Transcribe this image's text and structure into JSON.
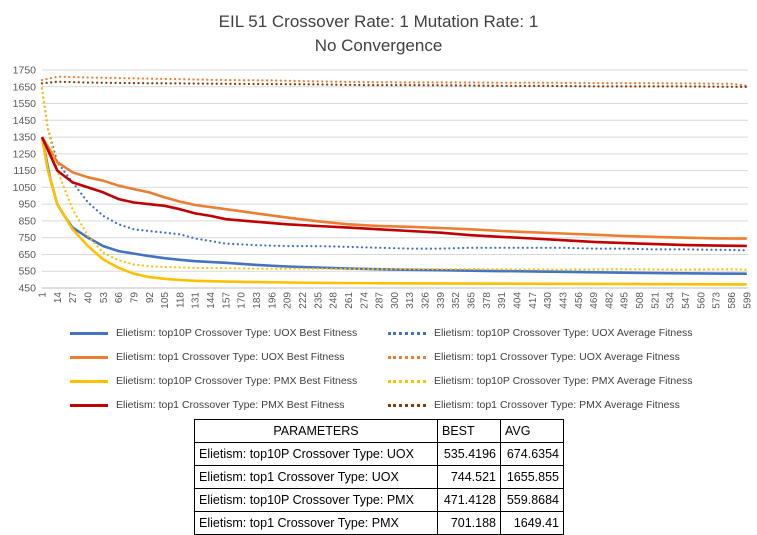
{
  "chart_data": {
    "type": "line",
    "title": "EIL 51 Crossover Rate: 1 Mutation Rate: 1",
    "subtitle": "No Convergence",
    "xlabel": "",
    "ylabel": "",
    "ylim": [
      450,
      1750
    ],
    "yticks": [
      450,
      550,
      650,
      750,
      850,
      950,
      1050,
      1150,
      1250,
      1350,
      1450,
      1550,
      1650,
      1750
    ],
    "xlim": [
      1,
      600
    ],
    "xticks": [
      1,
      14,
      27,
      40,
      53,
      66,
      79,
      92,
      105,
      118,
      131,
      144,
      157,
      170,
      183,
      196,
      209,
      222,
      235,
      248,
      261,
      274,
      287,
      300,
      313,
      326,
      339,
      352,
      365,
      378,
      391,
      404,
      417,
      430,
      443,
      456,
      469,
      482,
      495,
      508,
      521,
      534,
      547,
      560,
      573,
      586,
      599
    ],
    "grid": "horizontal",
    "legend_position": "bottom",
    "series": [
      {
        "name": "Elietism: top10P Crossover Type: UOX  Best Fitness",
        "color": "#4472C4",
        "style": "solid",
        "points": [
          [
            1,
            1350
          ],
          [
            8,
            1100
          ],
          [
            14,
            950
          ],
          [
            20,
            880
          ],
          [
            27,
            810
          ],
          [
            40,
            750
          ],
          [
            53,
            700
          ],
          [
            66,
            670
          ],
          [
            79,
            655
          ],
          [
            92,
            640
          ],
          [
            105,
            628
          ],
          [
            118,
            618
          ],
          [
            131,
            610
          ],
          [
            157,
            600
          ],
          [
            183,
            588
          ],
          [
            209,
            578
          ],
          [
            235,
            572
          ],
          [
            261,
            566
          ],
          [
            300,
            560
          ],
          [
            339,
            556
          ],
          [
            378,
            552
          ],
          [
            417,
            549
          ],
          [
            456,
            545
          ],
          [
            495,
            541
          ],
          [
            534,
            538
          ],
          [
            573,
            536
          ],
          [
            599,
            535.4
          ]
        ]
      },
      {
        "name": "Elietism: top10P Crossover Type: UOX  Average Fitness",
        "color": "#4472C4",
        "style": "dotted",
        "points": [
          [
            1,
            1640
          ],
          [
            6,
            1400
          ],
          [
            14,
            1200
          ],
          [
            27,
            1080
          ],
          [
            40,
            960
          ],
          [
            53,
            880
          ],
          [
            66,
            830
          ],
          [
            79,
            800
          ],
          [
            92,
            790
          ],
          [
            105,
            780
          ],
          [
            118,
            770
          ],
          [
            131,
            745
          ],
          [
            144,
            730
          ],
          [
            157,
            715
          ],
          [
            183,
            705
          ],
          [
            209,
            700
          ],
          [
            235,
            700
          ],
          [
            261,
            695
          ],
          [
            287,
            690
          ],
          [
            313,
            685
          ],
          [
            339,
            685
          ],
          [
            365,
            690
          ],
          [
            391,
            690
          ],
          [
            417,
            690
          ],
          [
            443,
            690
          ],
          [
            469,
            685
          ],
          [
            495,
            685
          ],
          [
            521,
            680
          ],
          [
            547,
            680
          ],
          [
            573,
            678
          ],
          [
            599,
            674.6
          ]
        ]
      },
      {
        "name": "Elietism: top1 Crossover Type: UOX  Best Fitness",
        "color": "#ED7D31",
        "style": "solid",
        "points": [
          [
            1,
            1350
          ],
          [
            14,
            1200
          ],
          [
            27,
            1140
          ],
          [
            40,
            1110
          ],
          [
            53,
            1090
          ],
          [
            66,
            1060
          ],
          [
            79,
            1040
          ],
          [
            92,
            1020
          ],
          [
            105,
            990
          ],
          [
            118,
            965
          ],
          [
            131,
            945
          ],
          [
            157,
            920
          ],
          [
            183,
            895
          ],
          [
            209,
            870
          ],
          [
            235,
            848
          ],
          [
            261,
            830
          ],
          [
            287,
            820
          ],
          [
            313,
            815
          ],
          [
            339,
            808
          ],
          [
            365,
            800
          ],
          [
            391,
            790
          ],
          [
            417,
            782
          ],
          [
            443,
            775
          ],
          [
            469,
            768
          ],
          [
            495,
            760
          ],
          [
            521,
            755
          ],
          [
            547,
            750
          ],
          [
            573,
            746
          ],
          [
            599,
            744.5
          ]
        ]
      },
      {
        "name": "Elietism: top1 Crossover Type: UOX  Average Fitness",
        "color": "#ED7D31",
        "style": "dotted",
        "points": [
          [
            1,
            1690
          ],
          [
            14,
            1710
          ],
          [
            40,
            1705
          ],
          [
            79,
            1700
          ],
          [
            118,
            1695
          ],
          [
            157,
            1690
          ],
          [
            196,
            1688
          ],
          [
            235,
            1682
          ],
          [
            274,
            1678
          ],
          [
            313,
            1676
          ],
          [
            352,
            1676
          ],
          [
            391,
            1674
          ],
          [
            430,
            1674
          ],
          [
            469,
            1672
          ],
          [
            508,
            1672
          ],
          [
            547,
            1670
          ],
          [
            586,
            1668
          ],
          [
            599,
            1655.9
          ]
        ]
      },
      {
        "name": "Elietism: top10P Crossover Type: PMX  Best Fitness",
        "color": "#FFC000",
        "style": "solid",
        "points": [
          [
            1,
            1350
          ],
          [
            6,
            1150
          ],
          [
            14,
            950
          ],
          [
            27,
            800
          ],
          [
            40,
            700
          ],
          [
            53,
            620
          ],
          [
            66,
            570
          ],
          [
            79,
            535
          ],
          [
            92,
            515
          ],
          [
            105,
            505
          ],
          [
            118,
            498
          ],
          [
            131,
            493
          ],
          [
            157,
            488
          ],
          [
            183,
            485
          ],
          [
            209,
            483
          ],
          [
            248,
            480
          ],
          [
            300,
            478
          ],
          [
            365,
            476
          ],
          [
            430,
            475
          ],
          [
            495,
            474
          ],
          [
            560,
            472
          ],
          [
            599,
            471.4
          ]
        ]
      },
      {
        "name": "Elietism: top10P Crossover Type: PMX  Average Fitness",
        "color": "#FFC000",
        "style": "dotted",
        "points": [
          [
            1,
            1640
          ],
          [
            6,
            1400
          ],
          [
            14,
            1150
          ],
          [
            27,
            920
          ],
          [
            40,
            760
          ],
          [
            53,
            660
          ],
          [
            66,
            615
          ],
          [
            79,
            590
          ],
          [
            92,
            580
          ],
          [
            105,
            575
          ],
          [
            131,
            570
          ],
          [
            157,
            568
          ],
          [
            183,
            565
          ],
          [
            235,
            565
          ],
          [
            287,
            562
          ],
          [
            339,
            563
          ],
          [
            391,
            562
          ],
          [
            443,
            560
          ],
          [
            495,
            562
          ],
          [
            547,
            560
          ],
          [
            586,
            562
          ],
          [
            599,
            559.9
          ]
        ]
      },
      {
        "name": "Elietism: top1 Crossover Type: PMX  Best Fitness",
        "color": "#C00000",
        "style": "solid",
        "points": [
          [
            1,
            1350
          ],
          [
            14,
            1150
          ],
          [
            27,
            1080
          ],
          [
            40,
            1050
          ],
          [
            53,
            1020
          ],
          [
            66,
            980
          ],
          [
            79,
            960
          ],
          [
            92,
            950
          ],
          [
            105,
            940
          ],
          [
            118,
            920
          ],
          [
            131,
            895
          ],
          [
            144,
            880
          ],
          [
            157,
            860
          ],
          [
            183,
            845
          ],
          [
            209,
            830
          ],
          [
            235,
            820
          ],
          [
            261,
            810
          ],
          [
            287,
            800
          ],
          [
            313,
            790
          ],
          [
            339,
            780
          ],
          [
            365,
            765
          ],
          [
            391,
            755
          ],
          [
            417,
            745
          ],
          [
            443,
            735
          ],
          [
            469,
            725
          ],
          [
            495,
            718
          ],
          [
            521,
            712
          ],
          [
            547,
            706
          ],
          [
            573,
            703
          ],
          [
            599,
            701.2
          ]
        ]
      },
      {
        "name": "Elietism: top1 Crossover Type: PMX  Average Fitness",
        "color": "#843C0C",
        "style": "dotted",
        "points": [
          [
            1,
            1670
          ],
          [
            14,
            1680
          ],
          [
            40,
            1675
          ],
          [
            79,
            1672
          ],
          [
            118,
            1670
          ],
          [
            157,
            1668
          ],
          [
            196,
            1666
          ],
          [
            235,
            1664
          ],
          [
            274,
            1660
          ],
          [
            313,
            1660
          ],
          [
            352,
            1658
          ],
          [
            391,
            1656
          ],
          [
            430,
            1655
          ],
          [
            469,
            1653
          ],
          [
            508,
            1652
          ],
          [
            547,
            1652
          ],
          [
            586,
            1650
          ],
          [
            599,
            1649.4
          ]
        ]
      }
    ]
  },
  "table": {
    "headers": [
      "PARAMETERS",
      "BEST",
      "AVG"
    ],
    "rows": [
      [
        "Elietism: top10P Crossover Type: UOX",
        "535.4196",
        "674.6354"
      ],
      [
        "Elietism: top1 Crossover Type: UOX",
        "744.521",
        "1655.855"
      ],
      [
        "Elietism: top10P Crossover Type: PMX",
        "471.4128",
        "559.8684"
      ],
      [
        "Elietism: top1 Crossover Type: PMX",
        "701.188",
        "1649.41"
      ]
    ]
  }
}
